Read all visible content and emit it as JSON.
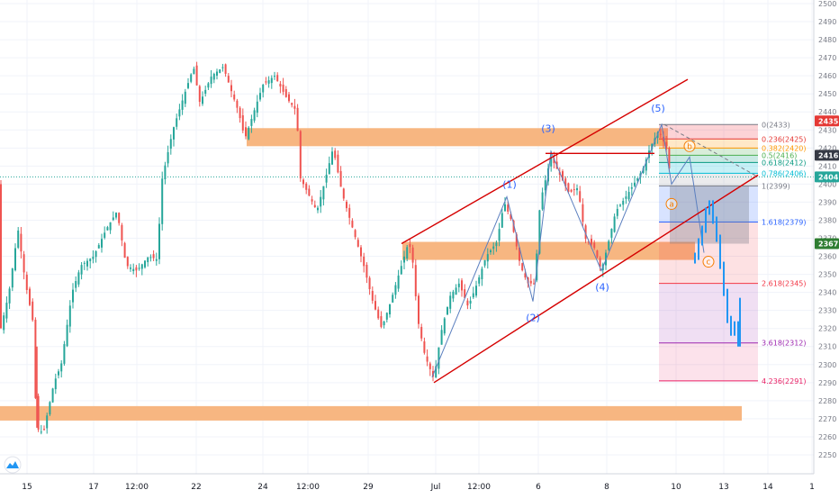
{
  "chart_data": {
    "type": "candlestick",
    "ylim": [
      2245,
      2500
    ],
    "y_ticks": [
      2250,
      2260,
      2270,
      2280,
      2290,
      2300,
      2310,
      2320,
      2330,
      2340,
      2350,
      2360,
      2370,
      2380,
      2390,
      2400,
      2410,
      2420,
      2430,
      2440,
      2450,
      2460,
      2470,
      2480,
      2490,
      2500
    ],
    "x_ticks": [
      "15",
      "17",
      "12:00",
      "22",
      "24",
      "12:00",
      "29",
      "Jul",
      "12:00",
      "6",
      "8",
      "10",
      "13",
      "14",
      "1"
    ],
    "price_labels": [
      {
        "value": 2435,
        "text": "2435",
        "color": "#e53935"
      },
      {
        "value": 2416,
        "text": "2416",
        "color": "#363a45"
      },
      {
        "value": 2404,
        "text": "2404",
        "color": "#26a69a"
      },
      {
        "value": 2367,
        "text": "2367",
        "color": "#2e7d32"
      }
    ],
    "fib_levels": [
      {
        "text": "0(2433)",
        "value": 2433,
        "color": "#787b86"
      },
      {
        "text": "0.236(2425)",
        "value": 2425,
        "color": "#e53935"
      },
      {
        "text": "0.382(2420)",
        "value": 2420,
        "color": "#ff9800"
      },
      {
        "text": "0.5(2416)",
        "value": 2416,
        "color": "#4caf50"
      },
      {
        "text": "0.618(2412)",
        "value": 2412,
        "color": "#089981"
      },
      {
        "text": "0.786(2406)",
        "value": 2406,
        "color": "#00bcd4"
      },
      {
        "text": "1(2399)",
        "value": 2399,
        "color": "#787b86"
      },
      {
        "text": "1.618(2379)",
        "value": 2379,
        "color": "#2962ff"
      },
      {
        "text": "2.618(2345)",
        "value": 2345,
        "color": "#f23645"
      },
      {
        "text": "3.618(2312)",
        "value": 2312,
        "color": "#9c27b0"
      },
      {
        "text": "4.236(2291)",
        "value": 2291,
        "color": "#e91e63"
      }
    ],
    "wave_labels": [
      {
        "text": "(1)",
        "color": "#2962ff"
      },
      {
        "text": "(2)",
        "color": "#2962ff"
      },
      {
        "text": "(3)",
        "color": "#2962ff"
      },
      {
        "text": "(4)",
        "color": "#2962ff"
      },
      {
        "text": "(5)",
        "color": "#2962ff"
      },
      {
        "text": "a",
        "color": "#f57c00"
      },
      {
        "text": "b",
        "color": "#f57c00"
      },
      {
        "text": "c",
        "color": "#f57c00"
      }
    ],
    "zones": [
      {
        "low": 2421,
        "high": 2431
      },
      {
        "low": 2358,
        "high": 2368
      },
      {
        "low": 2269,
        "high": 2277
      }
    ],
    "channel": {
      "upper": [
        {
          "date": "Jun 30",
          "price": 2367
        },
        {
          "date": "Jul 9",
          "price": 2458
        }
      ],
      "lower": [
        {
          "date": "Jul 1",
          "price": 2290
        },
        {
          "date": "Jul 13",
          "price": 2405
        }
      ]
    },
    "colors": {
      "up": "#26a69a",
      "down": "#ef5350",
      "projection": "#2196f3",
      "zone": "#f7b27a",
      "channel": "#d50000"
    }
  }
}
